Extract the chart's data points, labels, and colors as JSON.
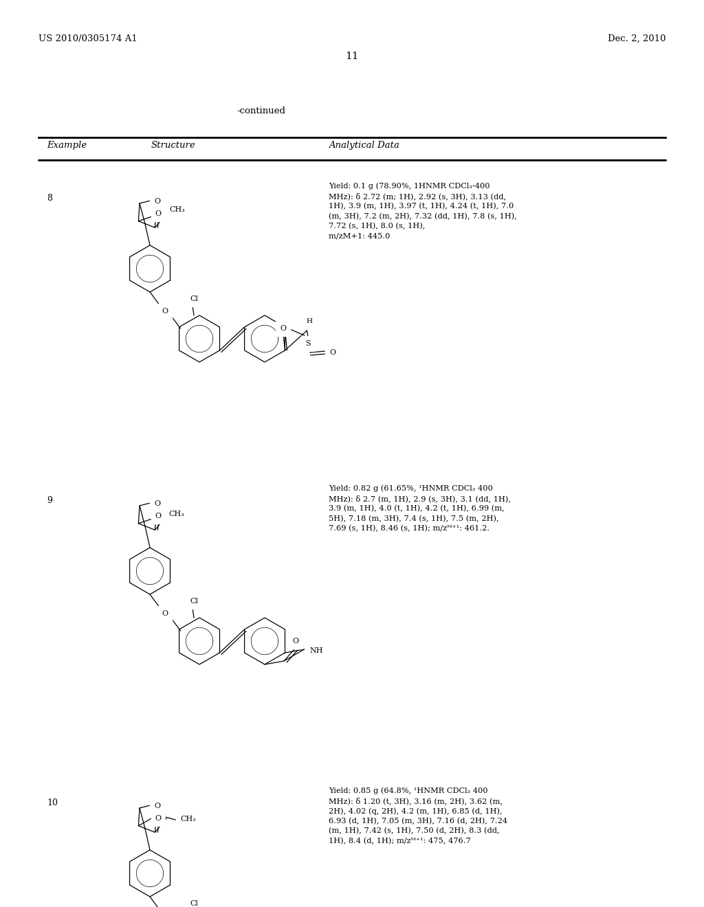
{
  "background_color": "#ffffff",
  "header_left": "US 2010/0305174 A1",
  "header_right": "Dec. 2, 2010",
  "page_number": "11",
  "continued_label": "-continued",
  "col1_label": "Example",
  "col2_label": "Structure",
  "col3_label": "Analytical Data",
  "rows": [
    {
      "num": "8",
      "analytical": "Yield: 0.1 g (78.90%, 1HNMR CDCl₃-400\nMHz): δ 2.72 (m; 1H), 2.92 (s, 3H), 3.13 (dd,\n1H), 3.9 (m, 1H), 3.97 (t, 1H), 4.24 (t, 1H), 7.0\n(m, 3H), 7.2 (m, 2H), 7.32 (dd, 1H), 7.8 (s, 1H),\n7.72 (s, 1H), 8.0 (s, 1H),\nm/zM+1: 445.0"
    },
    {
      "num": "9",
      "analytical": "Yield: 0.82 g (61.65%, ¹HNMR CDCl₃ 400\nMHz): δ 2.7 (m, 1H), 2.9 (s, 3H), 3.1 (dd, 1H),\n3.9 (m, 1H), 4.0 (t, 1H), 4.2 (t, 1H), 6.99 (m,\n5H), 7.18 (m, 3H), 7.4 (s, 1H), 7.5 (m, 2H),\n7.69 (s, 1H), 8.46 (s, 1H); m/zᴹ⁺¹: 461.2."
    },
    {
      "num": "10",
      "analytical": "Yield: 0.85 g (64.8%, ¹HNMR CDCl₃ 400\nMHz): δ 1.20 (t, 3H), 3.16 (m, 2H), 3.62 (m,\n2H), 4.02 (q, 2H), 4.2 (m, 1H), 6.85 (d, 1H),\n6.93 (d, 1H), 7.05 (m, 3H), 7.16 (d, 2H), 7.24\n(m, 1H), 7.42 (s, 1H), 7.50 (d, 2H), 8.3 (dd,\n1H), 8.4 (d, 1H); m/zᴹ⁺¹: 475, 476.7"
    }
  ]
}
